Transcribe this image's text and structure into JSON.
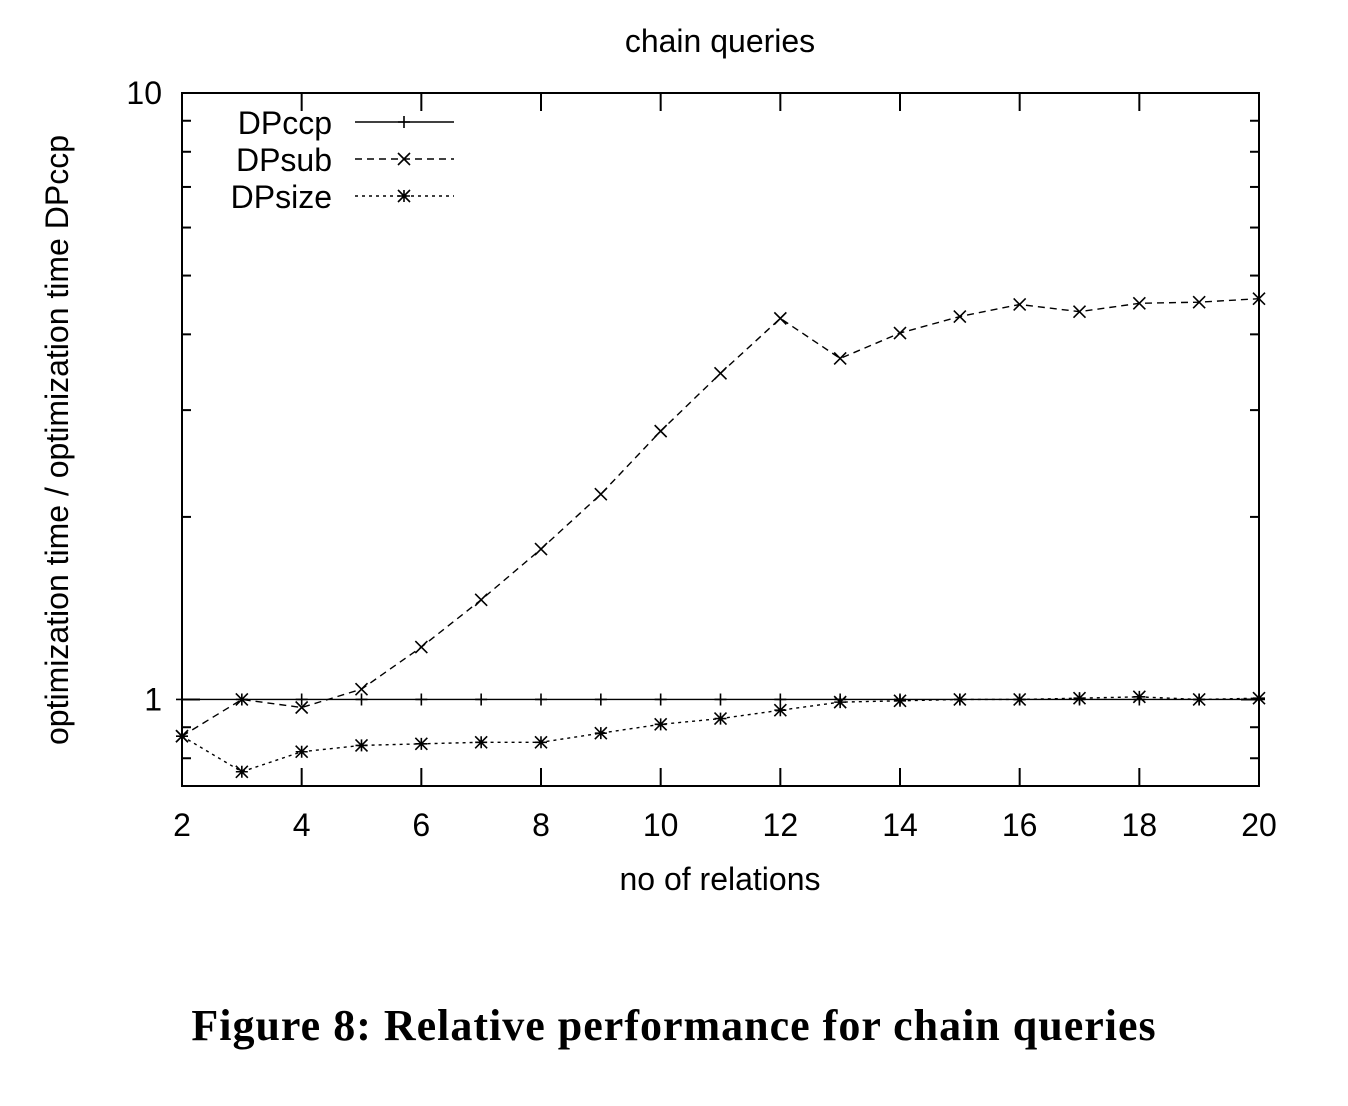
{
  "caption": "Figure 8: Relative performance for chain queries",
  "chart_data": {
    "type": "line",
    "title": "chain queries",
    "xlabel": "no of relations",
    "ylabel": "optimization time / optimization time DPccp",
    "xlim": [
      2,
      20
    ],
    "ylim": [
      0.72,
      10
    ],
    "y_scale": "log",
    "x_ticks": [
      2,
      4,
      6,
      8,
      10,
      12,
      14,
      16,
      18,
      20
    ],
    "x_tick_labels": [
      "2",
      "4",
      "6",
      "8",
      "10",
      "12",
      "14",
      "16",
      "18",
      "20"
    ],
    "y_tick_labels": [
      {
        "value": 10,
        "label": "10"
      },
      {
        "value": 1,
        "label": "1"
      }
    ],
    "y_minor_ticks": [
      0.8,
      0.9,
      2,
      3,
      4,
      5,
      6,
      7,
      8,
      9
    ],
    "grid": false,
    "legend_position": "top-left",
    "x": [
      2,
      3,
      4,
      5,
      6,
      7,
      8,
      9,
      10,
      11,
      12,
      13,
      14,
      15,
      16,
      17,
      18,
      19,
      20
    ],
    "series": [
      {
        "name": "DPccp",
        "marker": "plus",
        "dash": "solid",
        "values": [
          1,
          1,
          1,
          1,
          1,
          1,
          1,
          1,
          1,
          1,
          1,
          1,
          1,
          1,
          1,
          1,
          1,
          1,
          1
        ]
      },
      {
        "name": "DPsub",
        "marker": "cross",
        "dash": "dashed",
        "values": [
          0.87,
          1.0,
          0.97,
          1.04,
          1.22,
          1.46,
          1.77,
          2.18,
          2.77,
          3.45,
          4.25,
          3.65,
          4.02,
          4.28,
          4.48,
          4.36,
          4.5,
          4.52,
          4.58
        ]
      },
      {
        "name": "DPsize",
        "marker": "star",
        "dash": "dotted",
        "values": [
          0.87,
          0.76,
          0.82,
          0.84,
          0.845,
          0.85,
          0.85,
          0.88,
          0.91,
          0.93,
          0.96,
          0.99,
          0.995,
          1.0,
          1.0,
          1.005,
          1.01,
          1.0,
          1.005
        ]
      }
    ]
  }
}
